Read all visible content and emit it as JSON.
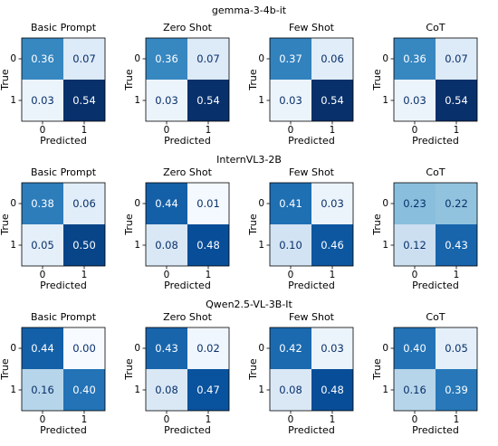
{
  "chart_data": {
    "type": "heatmap",
    "x_ticks": [
      "0",
      "1"
    ],
    "y_ticks": [
      "0",
      "1"
    ],
    "xlabel": "Predicted",
    "ylabel": "True",
    "colormap": "Blues",
    "value_range": [
      0,
      0.54
    ],
    "rows": [
      {
        "model": "gemma-3-4b-it",
        "panels": [
          {
            "title": "Basic Prompt",
            "values": [
              [
                "0.36",
                "0.07"
              ],
              [
                "0.03",
                "0.54"
              ]
            ]
          },
          {
            "title": "Zero Shot",
            "values": [
              [
                "0.36",
                "0.07"
              ],
              [
                "0.03",
                "0.54"
              ]
            ]
          },
          {
            "title": "Few Shot",
            "values": [
              [
                "0.37",
                "0.06"
              ],
              [
                "0.03",
                "0.54"
              ]
            ]
          },
          {
            "title": "CoT",
            "values": [
              [
                "0.36",
                "0.07"
              ],
              [
                "0.03",
                "0.54"
              ]
            ]
          }
        ]
      },
      {
        "model": "InternVL3-2B",
        "panels": [
          {
            "title": "Basic Prompt",
            "values": [
              [
                "0.38",
                "0.06"
              ],
              [
                "0.05",
                "0.50"
              ]
            ]
          },
          {
            "title": "Zero Shot",
            "values": [
              [
                "0.44",
                "0.01"
              ],
              [
                "0.08",
                "0.48"
              ]
            ]
          },
          {
            "title": "Few Shot",
            "values": [
              [
                "0.41",
                "0.03"
              ],
              [
                "0.10",
                "0.46"
              ]
            ]
          },
          {
            "title": "CoT",
            "values": [
              [
                "0.23",
                "0.22"
              ],
              [
                "0.12",
                "0.43"
              ]
            ]
          }
        ]
      },
      {
        "model": "Qwen2.5-VL-3B-It",
        "panels": [
          {
            "title": "Basic Prompt",
            "values": [
              [
                "0.44",
                "0.00"
              ],
              [
                "0.16",
                "0.40"
              ]
            ]
          },
          {
            "title": "Zero Shot",
            "values": [
              [
                "0.43",
                "0.02"
              ],
              [
                "0.08",
                "0.47"
              ]
            ]
          },
          {
            "title": "Few Shot",
            "values": [
              [
                "0.42",
                "0.03"
              ],
              [
                "0.08",
                "0.48"
              ]
            ]
          },
          {
            "title": "CoT",
            "values": [
              [
                "0.40",
                "0.05"
              ],
              [
                "0.16",
                "0.39"
              ]
            ]
          }
        ]
      }
    ]
  }
}
